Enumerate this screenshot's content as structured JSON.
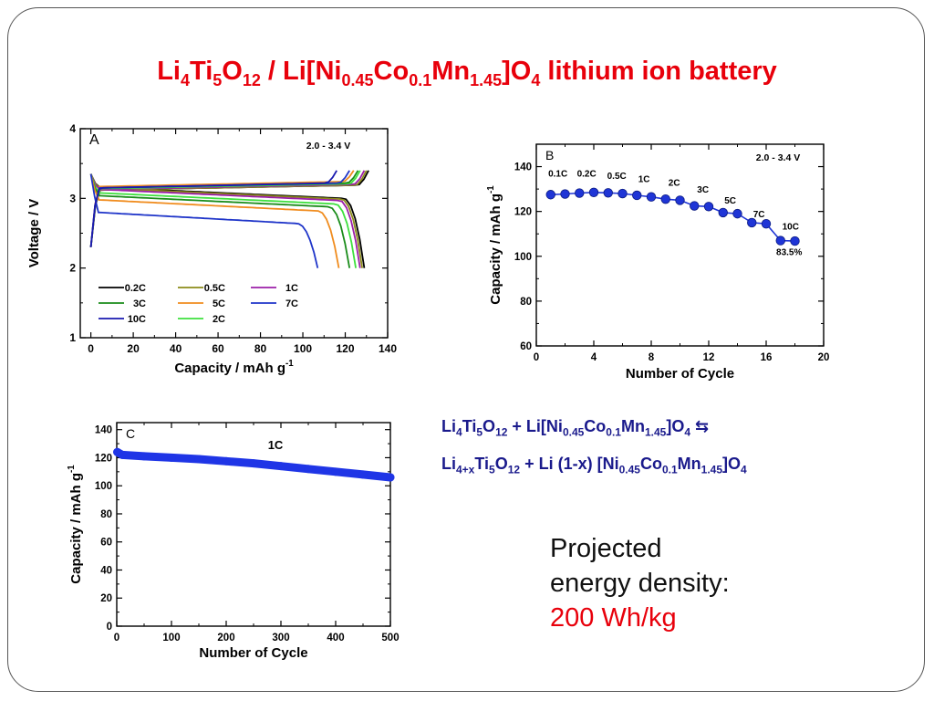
{
  "slide": {
    "title": {
      "parts": [
        {
          "t": "Li",
          "sub": false
        },
        {
          "t": "4",
          "sub": true
        },
        {
          "t": "Ti",
          "sub": false
        },
        {
          "t": "5",
          "sub": true
        },
        {
          "t": "O",
          "sub": false
        },
        {
          "t": "12",
          "sub": true
        },
        {
          "t": "  /   Li[Ni",
          "sub": false
        },
        {
          "t": "0.45",
          "sub": true
        },
        {
          "t": "Co",
          "sub": false
        },
        {
          "t": "0.1",
          "sub": true
        },
        {
          "t": "Mn",
          "sub": false
        },
        {
          "t": "1.45",
          "sub": true
        },
        {
          "t": "]O",
          "sub": false
        },
        {
          "t": "4",
          "sub": true
        },
        {
          "t": " lithium ion battery",
          "sub": false
        }
      ]
    },
    "equation": {
      "line1": [
        {
          "t": "Li",
          "sub": false
        },
        {
          "t": "4",
          "sub": true
        },
        {
          "t": "Ti",
          "sub": false
        },
        {
          "t": "5",
          "sub": true
        },
        {
          "t": "O",
          "sub": false
        },
        {
          "t": "12",
          "sub": true
        },
        {
          "t": "  + Li[Ni",
          "sub": false
        },
        {
          "t": "0.45",
          "sub": true
        },
        {
          "t": "Co",
          "sub": false
        },
        {
          "t": "0.1",
          "sub": true
        },
        {
          "t": "Mn",
          "sub": false
        },
        {
          "t": "1.45",
          "sub": true
        },
        {
          "t": "]O",
          "sub": false
        },
        {
          "t": "4",
          "sub": true
        },
        {
          "t": " ⇆",
          "sub": false
        }
      ],
      "line2": [
        {
          "t": "Li",
          "sub": false
        },
        {
          "t": "4+x",
          "sub": true
        },
        {
          "t": "Ti",
          "sub": false
        },
        {
          "t": "5",
          "sub": true
        },
        {
          "t": "O",
          "sub": false
        },
        {
          "t": "12",
          "sub": true
        },
        {
          "t": "  + Li (1-x) [Ni",
          "sub": false
        },
        {
          "t": "0.45",
          "sub": true
        },
        {
          "t": "Co",
          "sub": false
        },
        {
          "t": "0.1",
          "sub": true
        },
        {
          "t": "Mn",
          "sub": false
        },
        {
          "t": "1.45",
          "sub": true
        },
        {
          "t": "]O",
          "sub": false
        },
        {
          "t": "4",
          "sub": true
        }
      ]
    },
    "projected": {
      "line1": "Projected",
      "line2": "energy density:",
      "value": "200  Wh/kg"
    }
  },
  "chart_data": [
    {
      "panel": "A",
      "type": "line",
      "annotation": "2.0 - 3.4 V",
      "xlabel": "Capacity  / mAh g",
      "xlabel_sup": "-1",
      "ylabel": "Voltage  / V",
      "xlim": [
        -5,
        140
      ],
      "ylim": [
        1,
        4
      ],
      "xticks": [
        0,
        20,
        40,
        60,
        80,
        100,
        120,
        140
      ],
      "yticks": [
        1,
        2,
        3,
        4
      ],
      "legend": [
        {
          "name": "0.2C",
          "color": "#000000"
        },
        {
          "name": "0.5C",
          "color": "#8b8b1a"
        },
        {
          "name": "1C",
          "color": "#9b1fa8"
        },
        {
          "name": "3C",
          "color": "#1a8c1a"
        },
        {
          "name": "5C",
          "color": "#f08c1e"
        },
        {
          "name": "7C",
          "color": "#1f35c9"
        },
        {
          "name": "10C",
          "color": "#1a1ab0"
        },
        {
          "name": "2C",
          "color": "#3ee03e"
        }
      ],
      "series": [
        {
          "name": "0.2C",
          "color": "#000000",
          "charge_capacity": 131,
          "discharge_capacity": 129,
          "charge_plateau": 3.17,
          "discharge_plateau": 3.08
        },
        {
          "name": "0.5C",
          "color": "#8b8b1a",
          "charge_capacity": 130,
          "discharge_capacity": 128,
          "charge_plateau": 3.17,
          "discharge_plateau": 3.07
        },
        {
          "name": "1C",
          "color": "#9b1fa8",
          "charge_capacity": 129,
          "discharge_capacity": 127,
          "charge_plateau": 3.18,
          "discharge_plateau": 3.05
        },
        {
          "name": "2C",
          "color": "#3ee03e",
          "charge_capacity": 127,
          "discharge_capacity": 125,
          "charge_plateau": 3.19,
          "discharge_plateau": 3.0
        },
        {
          "name": "3C",
          "color": "#1a8c1a",
          "charge_capacity": 126,
          "discharge_capacity": 122,
          "charge_plateau": 3.2,
          "discharge_plateau": 2.96
        },
        {
          "name": "5C",
          "color": "#f08c1e",
          "charge_capacity": 124,
          "discharge_capacity": 117,
          "charge_plateau": 3.22,
          "discharge_plateau": 2.9
        },
        {
          "name": "7C",
          "color": "#1f35c9",
          "charge_capacity": 122,
          "discharge_capacity": 107,
          "charge_plateau": 3.2,
          "discharge_plateau": 2.72
        },
        {
          "name": "10C",
          "color": "#1a1ab0",
          "charge_capacity": 116,
          "discharge_capacity": 0,
          "charge_plateau": 3.2,
          "discharge_plateau": 0
        }
      ]
    },
    {
      "panel": "B",
      "type": "line",
      "annotation": "2.0 - 3.4 V",
      "xlabel": "Number of Cycle",
      "ylabel": "Capacity / mAh g",
      "ylabel_sup": "-1",
      "xlim": [
        0,
        20
      ],
      "ylim": [
        60,
        150
      ],
      "xticks": [
        0,
        4,
        8,
        12,
        16,
        20
      ],
      "yticks": [
        60,
        80,
        100,
        120,
        140
      ],
      "color": "#1f35d6",
      "x": [
        1,
        2,
        3,
        4,
        5,
        6,
        7,
        8,
        9,
        10,
        11,
        12,
        13,
        14,
        15,
        16,
        17,
        18
      ],
      "values": [
        127.5,
        127.8,
        128.2,
        128.5,
        128.3,
        128.0,
        127.2,
        126.5,
        125.5,
        125.0,
        122.5,
        122.2,
        119.5,
        119.0,
        115.0,
        114.5,
        107.0,
        106.8
      ],
      "rate_labels": [
        {
          "text": "0.1C",
          "x": 1.5,
          "y": 135.5
        },
        {
          "text": "0.2C",
          "x": 3.5,
          "y": 135.5
        },
        {
          "text": "0.5C",
          "x": 5.6,
          "y": 134.5
        },
        {
          "text": "1C",
          "x": 7.5,
          "y": 133
        },
        {
          "text": "2C",
          "x": 9.6,
          "y": 131.5
        },
        {
          "text": "3C",
          "x": 11.6,
          "y": 128.5
        },
        {
          "text": "5C",
          "x": 13.5,
          "y": 123.5
        },
        {
          "text": "7C",
          "x": 15.5,
          "y": 117.5
        },
        {
          "text": "10C",
          "x": 17.7,
          "y": 112
        }
      ],
      "retention_label": "83.5%"
    },
    {
      "panel": "C",
      "type": "scatter",
      "annotation": "1C",
      "xlabel": "Number of Cycle",
      "ylabel": "Capacity / mAh g",
      "ylabel_sup": "-1",
      "xlim": [
        0,
        500
      ],
      "ylim": [
        0,
        145
      ],
      "xticks": [
        0,
        100,
        200,
        300,
        400,
        500
      ],
      "yticks": [
        0,
        20,
        40,
        60,
        80,
        100,
        120,
        140
      ],
      "color": "#1f35e6",
      "x": [
        1,
        10,
        50,
        100,
        150,
        200,
        250,
        300,
        350,
        400,
        450,
        500
      ],
      "values": [
        124,
        122,
        121,
        120,
        119,
        117.5,
        116,
        114,
        112,
        110,
        108,
        106
      ]
    }
  ]
}
